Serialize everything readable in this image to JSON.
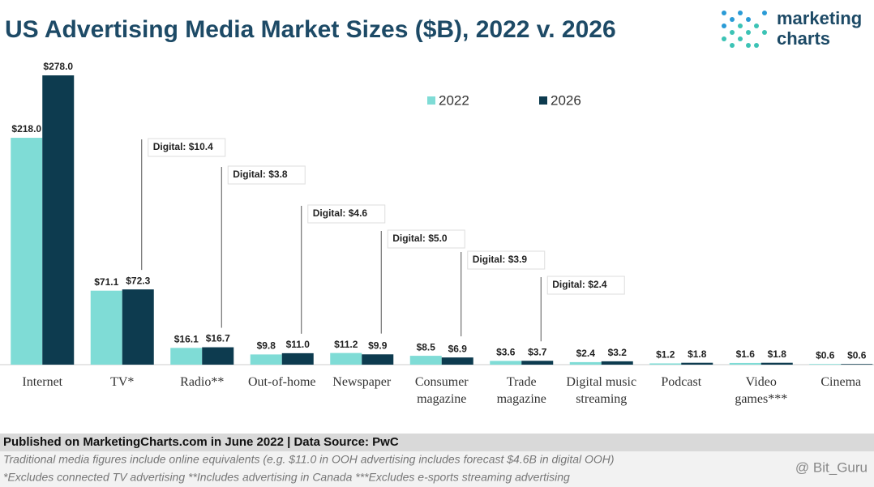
{
  "chart_data": {
    "type": "bar",
    "title": "US Advertising Media Market Sizes ($B), 2022 v. 2026",
    "categories": [
      "Internet",
      "TV*",
      "Radio**",
      "Out-of-home",
      "Newspaper",
      "Consumer magazine",
      "Trade magazine",
      "Digital music streaming",
      "Podcast",
      "Video games***",
      "Cinema"
    ],
    "series": [
      {
        "name": "2022",
        "color": "#7fdcd6",
        "values": [
          218.0,
          71.1,
          16.1,
          9.8,
          11.2,
          8.5,
          3.6,
          2.4,
          1.2,
          1.6,
          0.6
        ],
        "value_labels": [
          "$218.0",
          "$71.1",
          "$16.1",
          "$9.8",
          "$11.2",
          "$8.5",
          "$3.6",
          "$2.4",
          "$1.2",
          "$1.6",
          "$0.6"
        ]
      },
      {
        "name": "2026",
        "color": "#0d3b4f",
        "values": [
          278.0,
          72.3,
          16.7,
          11.0,
          9.9,
          6.9,
          3.7,
          3.2,
          1.8,
          1.8,
          0.6
        ],
        "value_labels": [
          "$278.0",
          "$72.3",
          "$16.7",
          "$11.0",
          "$9.9",
          "$6.9",
          "$3.7",
          "$3.2",
          "$1.8",
          "$1.8",
          "$0.6"
        ]
      }
    ],
    "digital_labels": [
      null,
      "Digital: $10.4",
      "Digital: $3.8",
      "Digital: $4.6",
      "Digital: $5.0",
      "Digital: $3.9",
      "Digital: $2.4",
      null,
      null,
      null,
      null
    ],
    "legend": "top-center"
  },
  "logo": {
    "line1": "marketing",
    "line2": "charts"
  },
  "footer": {
    "source": "Published on MarketingCharts.com in June 2022 | Data Source: PwC",
    "note1": "Traditional media figures include online equivalents (e.g. $11.0 in OOH advertising includes forecast $4.6B in digital OOH)",
    "note2": "*Excludes connected TV advertising **Includes advertising in Canada ***Excludes e-sports streaming advertising"
  },
  "watermark": "@ Bit_Guru"
}
